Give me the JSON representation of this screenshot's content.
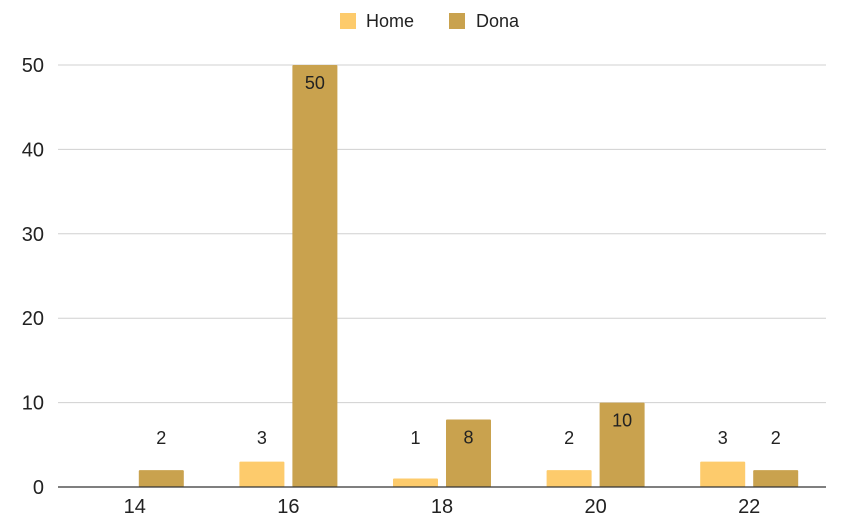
{
  "chart_data": {
    "type": "bar",
    "title": "",
    "xlabel": "",
    "ylabel": "",
    "categories": [
      "14",
      "16",
      "18",
      "20",
      "22"
    ],
    "series": [
      {
        "name": "Home",
        "values": [
          0,
          3,
          1,
          2,
          3
        ],
        "labels": [
          "",
          "3",
          "1",
          "2",
          "3"
        ],
        "color": "#FDCB6C"
      },
      {
        "name": "Dona",
        "values": [
          2,
          50,
          8,
          10,
          2
        ],
        "labels": [
          "2",
          "50",
          "8",
          "10",
          "2"
        ],
        "color": "#C9A24E"
      }
    ],
    "ylim": [
      0,
      50
    ],
    "yticks": [
      "0",
      "10",
      "20",
      "30",
      "40",
      "50"
    ],
    "grid": true,
    "legend_position": "top-center"
  }
}
